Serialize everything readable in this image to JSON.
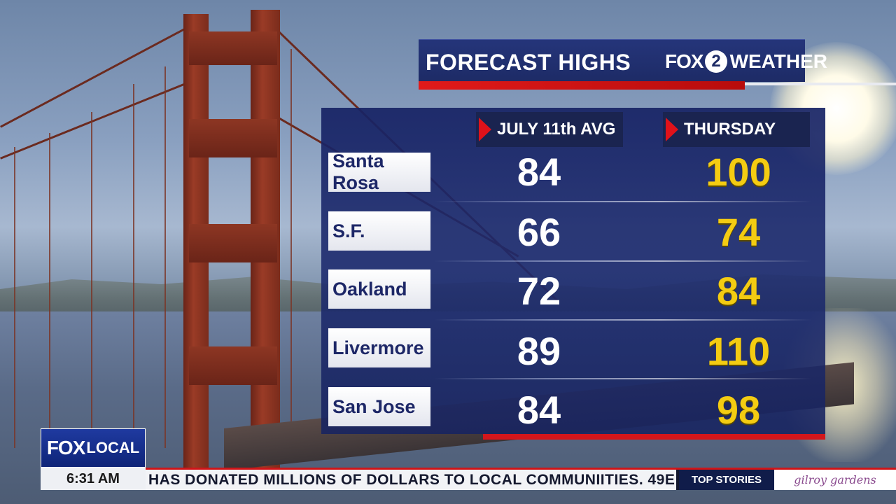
{
  "title": "FORECAST HIGHS",
  "brand": {
    "fox": "FOX",
    "two": "2",
    "weather": "WEATHER"
  },
  "columns": {
    "avg": "JULY 11th AVG",
    "thursday": "THURSDAY"
  },
  "rows": [
    {
      "city": "Santa Rosa",
      "avg": "84",
      "thursday": "100"
    },
    {
      "city": "S.F.",
      "avg": "66",
      "thursday": "74"
    },
    {
      "city": "Oakland",
      "avg": "72",
      "thursday": "84"
    },
    {
      "city": "Livermore",
      "avg": "89",
      "thursday": "110"
    },
    {
      "city": "San Jose",
      "avg": "84",
      "thursday": "98"
    }
  ],
  "lower_third": {
    "fox": "FOX",
    "local": "LOCAL",
    "time": "6:31 AM",
    "ticker": "HAS DONATED MILLIONS OF DOLLARS TO LOCAL COMMUNIITIES. 49E",
    "top_stories": "TOP STORIES",
    "sponsor": "gilroy gardens"
  },
  "colors": {
    "panel_blue": "#1c2a6e",
    "accent_red": "#e0121a",
    "value_yellow": "#f4cc12",
    "label_navy": "#1d2767"
  }
}
